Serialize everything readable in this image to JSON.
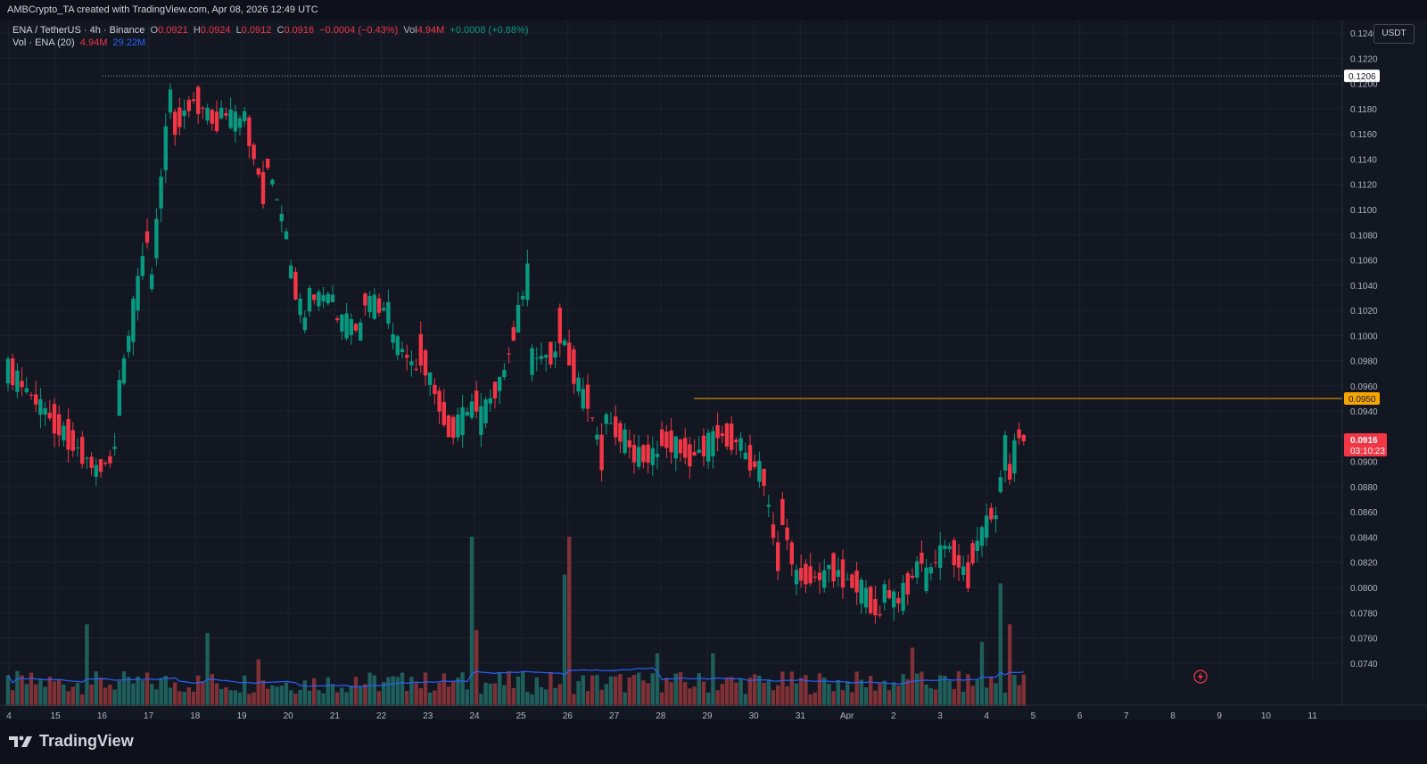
{
  "header": {
    "attribution": "AMBCrypto_TA created with TradingView.com, Apr 08, 2026 12:49 UTC"
  },
  "legend": {
    "symbol": "ENA / TetherUS · 4h · Binance",
    "o_label": "O",
    "o_value": "0.0921",
    "h_label": "H",
    "h_value": "0.0924",
    "l_label": "L",
    "l_value": "0.0912",
    "c_label": "C",
    "c_value": "0.0916",
    "change": "−0.0004 (−0.43%)",
    "vol_label": "Vol",
    "vol_value": "4.94M",
    "vol_change": "+0.0008 (+0.88%)",
    "vol_indicator_label": "Vol · ENA (20)",
    "vol_indicator_value": "4.94M",
    "vol_ma_value": "29.22M"
  },
  "currency_button": "USDT",
  "branding": {
    "name": "TradingView"
  },
  "colors": {
    "background": "#131722",
    "up": "#089981",
    "down": "#f23645",
    "volume_up": "#1f5f5b",
    "volume_down": "#7f3136",
    "ma_line": "#2962ff",
    "resistance": "#f7a600",
    "axis_text": "#b2b5be",
    "grid": "#1e2230"
  },
  "chart_data": {
    "type": "candlestick",
    "title": "ENA / TetherUS · 4h · Binance",
    "interval": "4h",
    "y_axis": {
      "min": 0.0725,
      "max": 0.125,
      "ticks": [
        "0.0740",
        "0.0760",
        "0.0780",
        "0.0800",
        "0.0820",
        "0.0840",
        "0.0860",
        "0.0880",
        "0.0900",
        "0.0920",
        "0.0940",
        "0.0960",
        "0.0980",
        "0.1000",
        "0.1020",
        "0.1040",
        "0.1060",
        "0.1080",
        "0.1100",
        "0.1120",
        "0.1140",
        "0.1160",
        "0.1180",
        "0.1200",
        "0.1220",
        "0.1240"
      ]
    },
    "x_axis": {
      "labels": [
        "4",
        "15",
        "16",
        "17",
        "18",
        "19",
        "20",
        "21",
        "22",
        "23",
        "24",
        "25",
        "26",
        "27",
        "28",
        "29",
        "30",
        "31",
        "Apr",
        "2",
        "3",
        "4",
        "5",
        "6",
        "7",
        "8",
        "9",
        "10",
        "11"
      ]
    },
    "grid": true,
    "levels": [
      {
        "label": "0.1206",
        "value": 0.1206,
        "style": "dotted",
        "color": "#9598a1"
      },
      {
        "label": "0.0950",
        "value": 0.095,
        "style": "solid",
        "color": "#f7a600"
      }
    ],
    "last_price": {
      "label": "0.0916",
      "value": 0.0916,
      "countdown": "03:10:23"
    },
    "keypoints": [
      [
        0,
        0.0975,
        0.096
      ],
      [
        18,
        0.089,
        0.09
      ],
      [
        22,
        0.0915,
        0.09
      ],
      [
        23,
        0.0925,
        0.0912
      ],
      [
        30,
        0.0995,
        0.107
      ],
      [
        35,
        0.116,
        0.1175
      ],
      [
        40,
        0.119,
        0.1185
      ],
      [
        45,
        0.118,
        0.117
      ],
      [
        50,
        0.1195,
        0.117
      ],
      [
        55,
        0.1155,
        0.112
      ],
      [
        60,
        0.107,
        0.1085
      ],
      [
        64,
        0.103,
        0.1015
      ],
      [
        70,
        0.1015,
        0.103
      ],
      [
        76,
        0.103,
        0.1005
      ],
      [
        82,
        0.1005,
        0.102
      ],
      [
        88,
        0.1,
        0.0975
      ],
      [
        95,
        0.092,
        0.093
      ],
      [
        101,
        0.0925,
        0.0945
      ],
      [
        106,
        0.095,
        0.096
      ],
      [
        112,
        0.098,
        0.104
      ],
      [
        118,
        0.102,
        0.0985
      ],
      [
        124,
        0.097,
        0.0955
      ],
      [
        128,
        0.094,
        0.091
      ],
      [
        134,
        0.0905,
        0.0915
      ],
      [
        140,
        0.092,
        0.0905
      ],
      [
        146,
        0.09,
        0.091
      ],
      [
        152,
        0.0925,
        0.0915
      ],
      [
        158,
        0.091,
        0.0915
      ],
      [
        162,
        0.0915,
        0.0895
      ],
      [
        166,
        0.088,
        0.083
      ],
      [
        170,
        0.081,
        0.0815
      ],
      [
        176,
        0.082,
        0.0808
      ],
      [
        182,
        0.081,
        0.0805
      ],
      [
        188,
        0.08,
        0.078
      ],
      [
        192,
        0.0785,
        0.079
      ],
      [
        197,
        0.08,
        0.082
      ],
      [
        202,
        0.084,
        0.083
      ],
      [
        207,
        0.0815,
        0.081
      ],
      [
        212,
        0.082,
        0.0855
      ],
      [
        215,
        0.087,
        0.09
      ],
      [
        218,
        0.0905,
        0.0916
      ]
    ],
    "volume": {
      "ma_period": 20,
      "max": 58,
      "spikes": [
        [
          17,
          28
        ],
        [
          26,
          10
        ],
        [
          43,
          25
        ],
        [
          54,
          16
        ],
        [
          75,
          10
        ],
        [
          87,
          10
        ],
        [
          100,
          58
        ],
        [
          101,
          26
        ],
        [
          120,
          45
        ],
        [
          121,
          58
        ],
        [
          140,
          18
        ],
        [
          152,
          18
        ],
        [
          195,
          20
        ],
        [
          210,
          22
        ],
        [
          214,
          42
        ],
        [
          216,
          28
        ]
      ]
    }
  }
}
